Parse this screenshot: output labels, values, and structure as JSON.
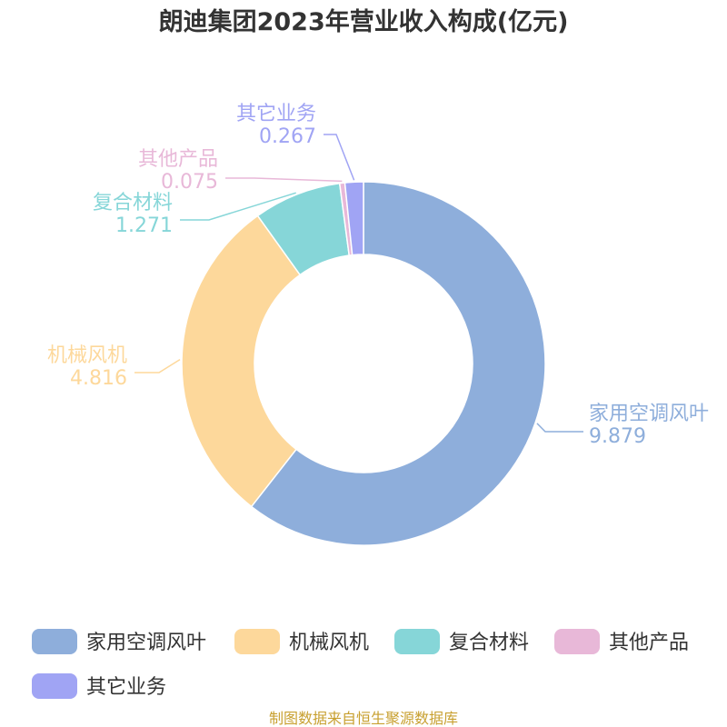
{
  "chart_data": {
    "type": "pie",
    "title": "朗迪集团2023年营业收入构成(亿元)",
    "categories": [
      "家用空调风叶",
      "机械风机",
      "复合材料",
      "其他产品",
      "其它业务"
    ],
    "values": [
      9.879,
      4.816,
      1.271,
      0.075,
      0.267
    ],
    "value_labels": [
      "9.879",
      "4.816",
      "1.271",
      "0.075",
      "0.267"
    ],
    "colors": [
      "#8eaedb",
      "#fdd89b",
      "#86d6d8",
      "#e8b8d8",
      "#a0a4f4"
    ],
    "donut": true,
    "legend_position": "bottom"
  },
  "footer": {
    "source": "制图数据来自恒生聚源数据库"
  }
}
